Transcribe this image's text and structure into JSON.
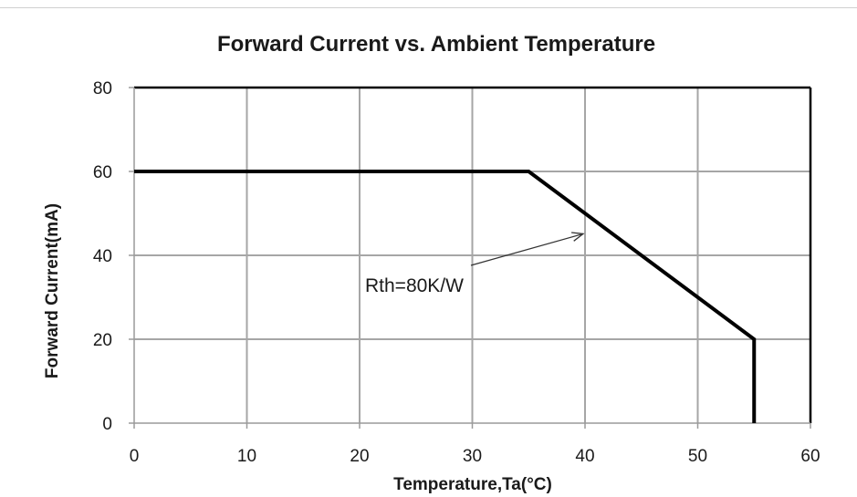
{
  "chart_data": {
    "type": "line",
    "title": "Forward Current vs. Ambient Temperature",
    "xlabel": "Temperature,Ta(°C)",
    "ylabel": "Forward Current(mA)",
    "xlim": [
      0,
      60
    ],
    "ylim": [
      0,
      80
    ],
    "x_ticks": [
      0,
      10,
      20,
      30,
      40,
      50,
      60
    ],
    "y_ticks": [
      0,
      20,
      40,
      60,
      80
    ],
    "grid": true,
    "series": [
      {
        "x": [
          0,
          35,
          55,
          55
        ],
        "y": [
          60,
          60,
          20,
          0
        ]
      }
    ],
    "annotations": [
      {
        "text": "Rth=80K/W",
        "points_to": {
          "x": 40,
          "y": 46
        }
      }
    ],
    "colors": {
      "line": "#000000",
      "grid": "#a6a6a6",
      "frame": "#000000"
    }
  }
}
